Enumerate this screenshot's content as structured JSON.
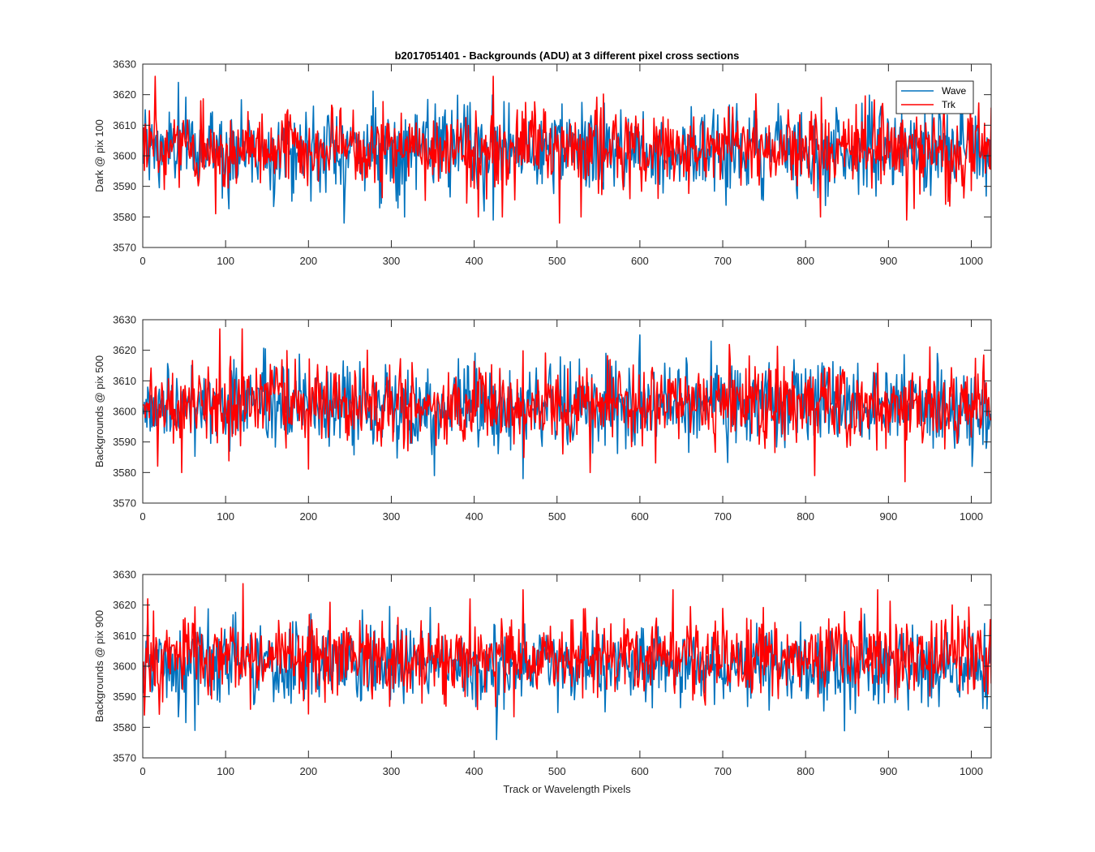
{
  "figure_title": "b2017051401 - Backgrounds (ADU) at 3 different pixel cross sections",
  "xlabel": "Track or Wavelength Pixels",
  "legend": {
    "entries": [
      "Wave",
      "Trk"
    ],
    "placement": "top-right"
  },
  "colors": {
    "Wave": "#0072BD",
    "Trk": "#FF0000",
    "axes": "#262626"
  },
  "chart_data": [
    {
      "type": "line",
      "title": "b2017051401 - Backgrounds (ADU) at 3 different pixel cross sections",
      "ylabel": "Dark @ pix 100",
      "xlabel": "",
      "xlim": [
        0,
        1024
      ],
      "ylim": [
        3570,
        3630
      ],
      "xticks": [
        0,
        100,
        200,
        300,
        400,
        500,
        600,
        700,
        800,
        900,
        1000
      ],
      "yticks": [
        3570,
        3580,
        3590,
        3600,
        3610,
        3620,
        3630
      ],
      "x_range": [
        1,
        1024
      ],
      "series": [
        {
          "name": "Wave",
          "mean": 3602,
          "std": 7,
          "min": 3578,
          "max": 3624,
          "n": 1024,
          "note_extremes": [
            [
              243,
              3578
            ],
            [
              423,
              3579
            ],
            [
              43,
              3624
            ]
          ]
        },
        {
          "name": "Trk",
          "mean": 3602,
          "std": 6.5,
          "min": 3578,
          "max": 3626,
          "n": 1024,
          "note_extremes": [
            [
              15,
              3626
            ],
            [
              423,
              3626
            ],
            [
              503,
              3578
            ],
            [
              922,
              3579
            ]
          ]
        }
      ],
      "legend": true
    },
    {
      "type": "line",
      "ylabel": "Backgrounds @ pix 500",
      "xlabel": "",
      "xlim": [
        0,
        1024
      ],
      "ylim": [
        3570,
        3630
      ],
      "xticks": [
        0,
        100,
        200,
        300,
        400,
        500,
        600,
        700,
        800,
        900,
        1000
      ],
      "yticks": [
        3570,
        3580,
        3590,
        3600,
        3610,
        3620,
        3630
      ],
      "x_range": [
        1,
        1024
      ],
      "series": [
        {
          "name": "Wave",
          "mean": 3602,
          "std": 7,
          "min": 3578,
          "max": 3625,
          "n": 1024,
          "note_extremes": [
            [
              459,
              3578
            ],
            [
              600,
              3625
            ],
            [
              352,
              3579
            ]
          ]
        },
        {
          "name": "Trk",
          "mean": 3602,
          "std": 6.5,
          "min": 3577,
          "max": 3627,
          "n": 1024,
          "note_extremes": [
            [
              93,
              3627
            ],
            [
              120,
              3627
            ],
            [
              920,
              3577
            ],
            [
              47,
              3580
            ],
            [
              540,
              3580
            ]
          ]
        }
      ],
      "legend": false
    },
    {
      "type": "line",
      "ylabel": "Backgrounds @ pix 900",
      "xlabel": "Track or Wavelength Pixels",
      "xlim": [
        0,
        1024
      ],
      "ylim": [
        3570,
        3630
      ],
      "xticks": [
        0,
        100,
        200,
        300,
        400,
        500,
        600,
        700,
        800,
        900,
        1000
      ],
      "yticks": [
        3570,
        3580,
        3590,
        3600,
        3610,
        3620,
        3630
      ],
      "x_range": [
        1,
        1024
      ],
      "series": [
        {
          "name": "Wave",
          "mean": 3600,
          "std": 6.5,
          "min": 3576,
          "max": 3624,
          "n": 1024,
          "note_extremes": [
            [
              427,
              3576
            ],
            [
              63,
              3579
            ]
          ]
        },
        {
          "name": "Trk",
          "mean": 3603,
          "std": 6.5,
          "min": 3579,
          "max": 3627,
          "n": 1024,
          "note_extremes": [
            [
              121,
              3627
            ],
            [
              640,
              3579
            ],
            [
              640,
              3625
            ],
            [
              887,
              3625
            ]
          ]
        }
      ],
      "legend": false
    }
  ]
}
